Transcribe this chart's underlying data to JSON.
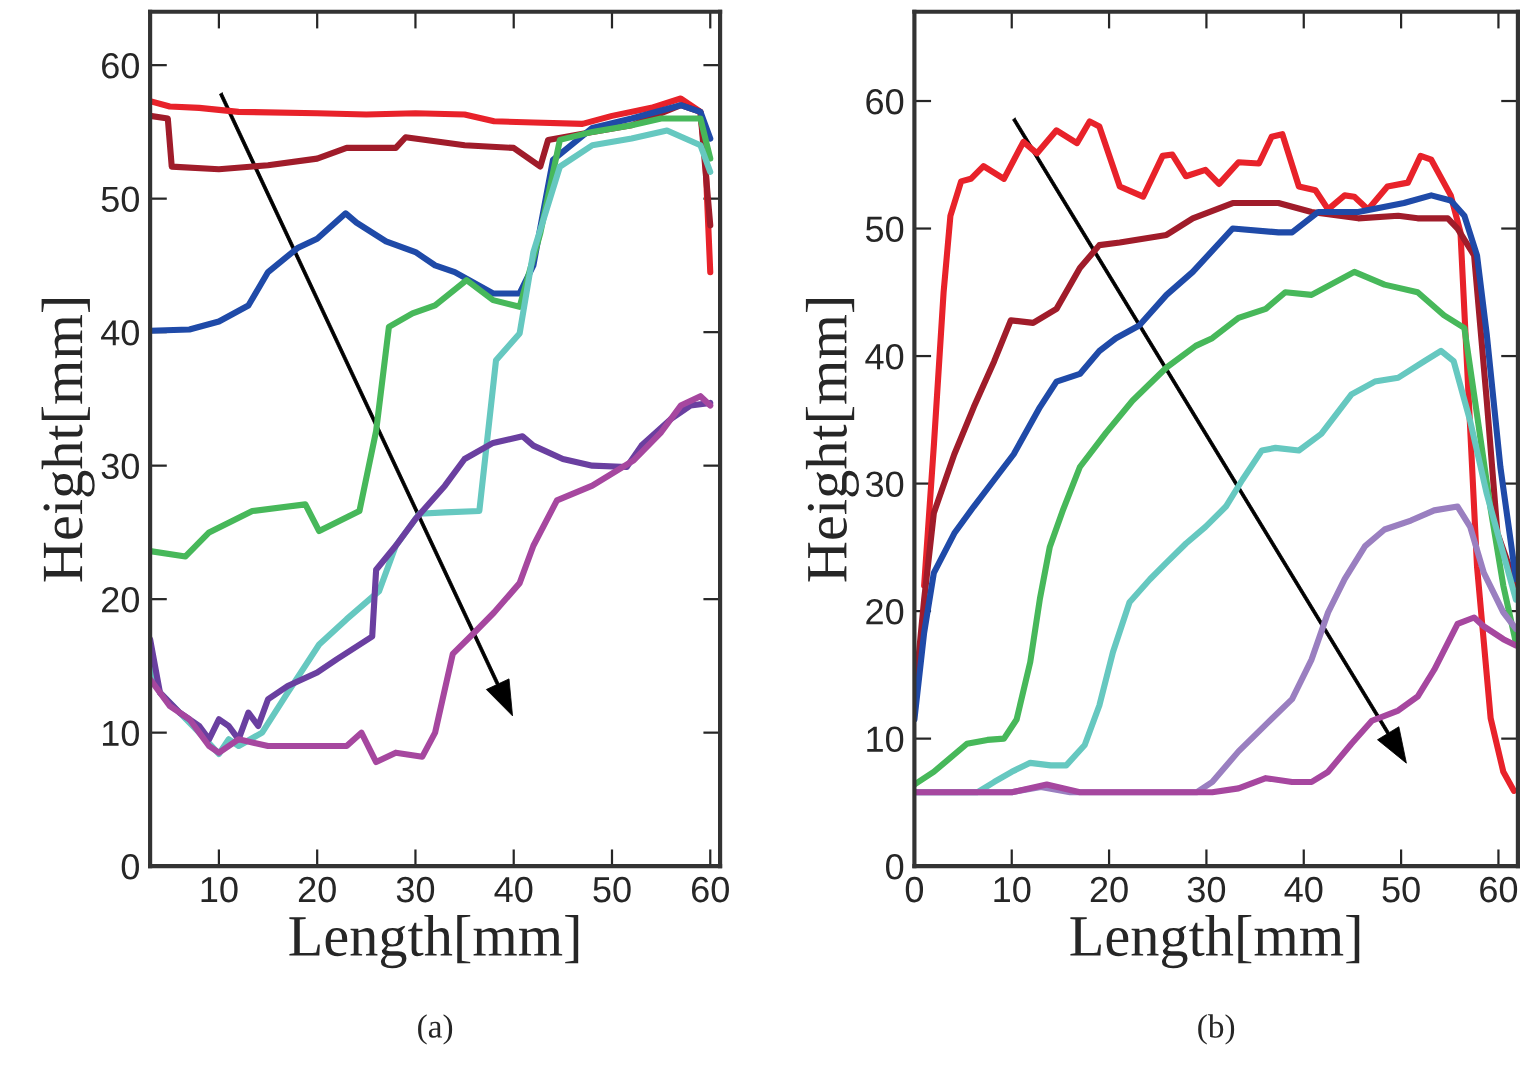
{
  "chart_data": [
    {
      "type": "line",
      "title": "(a)",
      "xlabel": "Length[mm]",
      "ylabel": "Height[mm]",
      "xlim": [
        3,
        61
      ],
      "ylim": [
        0,
        64
      ],
      "xticks": [
        10,
        20,
        30,
        40,
        50,
        60
      ],
      "yticks": [
        0,
        10,
        20,
        30,
        40,
        50,
        60
      ],
      "grid": false,
      "legend": false,
      "marker": "none",
      "line_style": "solid",
      "series": [
        {
          "color": "#e8222a",
          "x": [
            3,
            5,
            8,
            12,
            20,
            25,
            30,
            35,
            38,
            42,
            47,
            50,
            54,
            57,
            59,
            59.5,
            60
          ],
          "values": [
            57.3,
            56.9,
            56.8,
            56.5,
            56.4,
            56.3,
            56.4,
            56.3,
            55.8,
            55.7,
            55.6,
            56.2,
            56.8,
            57.5,
            56.5,
            53,
            44.5
          ]
        },
        {
          "color": "#a01c2a",
          "x": [
            3,
            4.8,
            5.2,
            10,
            15,
            20,
            23,
            28,
            29,
            35,
            40,
            42.7,
            43.5,
            48,
            52,
            57,
            59,
            60
          ],
          "values": [
            56.2,
            56,
            52.4,
            52.2,
            52.5,
            53,
            53.8,
            53.8,
            54.6,
            54,
            53.8,
            52.4,
            54.4,
            55,
            55.5,
            57,
            56.5,
            48
          ]
        },
        {
          "color": "#1f4aa8",
          "x": [
            3,
            7,
            10,
            13,
            15,
            18,
            20,
            22.9,
            24,
            27,
            30,
            32,
            34,
            37.9,
            40.6,
            42,
            43,
            44,
            48,
            52,
            57,
            59,
            60
          ],
          "values": [
            40.1,
            40.2,
            40.8,
            42,
            44.5,
            46.3,
            47,
            48.9,
            48.2,
            46.8,
            46,
            45,
            44.5,
            42.9,
            42.9,
            45,
            49,
            52.9,
            55.3,
            56,
            57,
            56.5,
            54.5
          ]
        },
        {
          "color": "#47b85a",
          "x": [
            3,
            6.6,
            9,
            13.4,
            18.8,
            20.2,
            24.3,
            26,
            27.3,
            29.7,
            32,
            35.2,
            37.9,
            40.6,
            42.7,
            44.7,
            48,
            52,
            55,
            59,
            60
          ],
          "values": [
            23.6,
            23.2,
            25,
            26.6,
            27.1,
            25.1,
            26.6,
            32.6,
            40.4,
            41.4,
            42,
            43.9,
            42.4,
            41.9,
            47.4,
            54.4,
            55,
            55.5,
            56,
            56,
            53
          ]
        },
        {
          "color": "#66c8c0",
          "x": [
            3,
            4,
            6,
            8,
            10,
            11,
            12,
            14.4,
            17,
            20.2,
            23,
            26.3,
            28,
            30.4,
            33,
            36.5,
            38.2,
            40.6,
            42,
            44.7,
            48,
            52,
            55.6,
            59,
            60
          ],
          "values": [
            15,
            13,
            11.5,
            10,
            8.4,
            9.5,
            9,
            10,
            13,
            16.6,
            18.5,
            20.6,
            24,
            26.4,
            26.5,
            26.6,
            37.9,
            39.9,
            46,
            52.4,
            54,
            54.5,
            55.1,
            54,
            52
          ]
        },
        {
          "color": "#6a3fa0",
          "x": [
            3,
            4,
            6,
            8,
            9,
            10,
            11,
            12,
            13,
            14,
            15,
            17,
            20,
            22,
            25.6,
            26,
            28,
            30,
            33,
            35,
            37.9,
            40.9,
            42,
            45,
            48,
            51.5,
            53,
            56,
            58,
            60
          ],
          "values": [
            17,
            13,
            11.5,
            10.5,
            9.5,
            11,
            10.5,
            9.5,
            11.5,
            10.5,
            12.5,
            13.5,
            14.5,
            15.5,
            17.2,
            22.2,
            24,
            26,
            28.5,
            30.5,
            31.7,
            32.2,
            31.5,
            30.5,
            30,
            29.9,
            31.5,
            33.5,
            34.5,
            34.7
          ]
        },
        {
          "color": "#a6479f",
          "x": [
            3,
            5,
            7,
            8,
            9,
            10,
            12,
            15,
            20,
            23,
            24.5,
            26,
            28,
            30.7,
            32,
            33.8,
            36,
            38,
            40.6,
            42,
            44.4,
            48,
            52.2,
            55,
            57,
            59,
            60
          ],
          "values": [
            14,
            12,
            11,
            10,
            9,
            8.5,
            9.5,
            9,
            9,
            9,
            10,
            7.8,
            8.5,
            8.2,
            10,
            15.9,
            17.5,
            19,
            21.2,
            24,
            27.4,
            28.5,
            30.4,
            32.5,
            34.5,
            35.2,
            34.5
          ]
        }
      ]
    },
    {
      "type": "line",
      "title": "(b)",
      "xlabel": "Length[mm]",
      "ylabel": "Height[mm]",
      "xlim": [
        0,
        62
      ],
      "ylim": [
        0,
        67
      ],
      "xticks": [
        0,
        10,
        20,
        30,
        40,
        50,
        60
      ],
      "yticks": [
        0,
        10,
        20,
        30,
        40,
        50,
        60
      ],
      "grid": false,
      "legend": false,
      "marker": "none",
      "line_style": "solid",
      "series": [
        {
          "color": "#e8222a",
          "x": [
            1,
            2,
            3,
            3.7,
            4.8,
            5.8,
            7.1,
            9.2,
            11.2,
            12.6,
            14.6,
            16.7,
            18,
            19,
            21.1,
            23.5,
            25.5,
            26.5,
            27.9,
            29.9,
            31.3,
            33.3,
            35.4,
            36.7,
            37.8,
            39.5,
            41.2,
            42.5,
            44.2,
            45.2,
            46.6,
            48.6,
            50.7,
            52,
            53.1,
            55.1,
            56.1,
            57.8,
            59.2,
            60.5,
            61.6
          ],
          "values": [
            22,
            33,
            45,
            51,
            53.7,
            53.9,
            54.9,
            53.9,
            56.8,
            55.9,
            57.7,
            56.7,
            58.4,
            58,
            53.3,
            52.5,
            55.7,
            55.8,
            54.1,
            54.6,
            53.5,
            55.2,
            55.1,
            57.2,
            57.4,
            53.3,
            53,
            51.5,
            52.6,
            52.5,
            51.5,
            53.3,
            53.6,
            55.7,
            55.4,
            52.6,
            49.7,
            23.5,
            11.6,
            7.4,
            5.9
          ]
        },
        {
          "color": "#a01c2a",
          "x": [
            0,
            1,
            2,
            4.1,
            6.1,
            8.2,
            9.9,
            12.2,
            14.6,
            17,
            19,
            21.1,
            25.9,
            28.6,
            32.7,
            37.4,
            40.8,
            45.6,
            49.7,
            51.7,
            54.8,
            55.8,
            57.5,
            58.8,
            59.9,
            61.8
          ],
          "values": [
            13,
            20.9,
            27.7,
            32.3,
            36,
            39.6,
            42.8,
            42.6,
            43.7,
            46.9,
            48.7,
            48.9,
            49.5,
            50.8,
            52,
            52,
            51.3,
            50.8,
            51,
            50.8,
            50.8,
            50,
            47.9,
            36.5,
            26.1,
            22
          ]
        },
        {
          "color": "#1f4aa8",
          "x": [
            0,
            1,
            2,
            4.1,
            6.1,
            8.2,
            10.2,
            12.9,
            14.6,
            17,
            19,
            20.7,
            23.1,
            25.9,
            28.6,
            32.7,
            37.4,
            38.8,
            41.5,
            45.6,
            50.3,
            53.1,
            55.1,
            56.5,
            57.8,
            58.8,
            60.2,
            61.8
          ],
          "values": [
            11.5,
            18.3,
            23,
            26.1,
            28.2,
            30.3,
            32.3,
            36,
            38,
            38.6,
            40.4,
            41.4,
            42.4,
            44.8,
            46.6,
            50,
            49.7,
            49.7,
            51.3,
            51.3,
            52,
            52.6,
            52.2,
            51,
            47.9,
            41.7,
            31.3,
            22.5
          ]
        },
        {
          "color": "#47b85a",
          "x": [
            0,
            2,
            5.4,
            7.5,
            9.2,
            10.5,
            11.9,
            12.9,
            13.9,
            15.3,
            17,
            19.7,
            22.4,
            25.9,
            28.9,
            30.6,
            33.3,
            36.1,
            38.1,
            40.8,
            45.2,
            48.3,
            51.7,
            54.4,
            56.5,
            57.8,
            59.2,
            60.5,
            61.8
          ],
          "values": [
            6.4,
            7.4,
            9.6,
            9.9,
            10,
            11.5,
            16,
            21,
            25,
            28,
            31.3,
            34,
            36.5,
            39.1,
            40.8,
            41.4,
            43,
            43.7,
            45,
            44.8,
            46.6,
            45.6,
            45,
            43.2,
            42.2,
            35.4,
            28,
            22,
            17.5
          ]
        },
        {
          "color": "#66c8c0",
          "x": [
            0,
            3,
            6.5,
            8.2,
            10,
            11.9,
            14,
            15.6,
            17.5,
            19,
            20.4,
            22.1,
            24.2,
            25.9,
            27.9,
            29.9,
            32,
            33.7,
            35.7,
            37.1,
            39.5,
            41.8,
            44.9,
            47.3,
            49.7,
            52.4,
            54.1,
            55.4,
            57.1,
            58.8,
            60.5,
            61.8
          ],
          "values": [
            5.8,
            null,
            5.8,
            6.6,
            7.4,
            8.1,
            7.9,
            7.9,
            9.5,
            12.6,
            16.8,
            20.7,
            22.5,
            23.8,
            25.3,
            26.6,
            28.2,
            30.3,
            32.6,
            32.8,
            32.6,
            33.9,
            37,
            38,
            38.3,
            39.6,
            40.4,
            39.6,
            34.9,
            29.2,
            24.5,
            20.9
          ]
        },
        {
          "color": "#9a7fc0",
          "x": [
            0,
            10,
            13,
            16,
            29,
            30.6,
            33.3,
            36.1,
            38.8,
            40.8,
            42.5,
            44.2,
            46.3,
            48.3,
            51,
            53.4,
            55.8,
            57.1,
            58.5,
            60.5,
            61.8
          ],
          "values": [
            5.8,
            5.8,
            6.2,
            5.8,
            5.8,
            6.6,
            9,
            11.1,
            13.1,
            16.2,
            19.9,
            22.5,
            25.1,
            26.4,
            27.1,
            27.9,
            28.2,
            26.6,
            23,
            19.9,
            18.6
          ]
        },
        {
          "color": "#a6479f",
          "x": [
            0,
            10,
            13.6,
            17,
            30.6,
            33.3,
            36.1,
            38.8,
            40.8,
            42.5,
            44.9,
            47,
            49.7,
            51.7,
            53.4,
            55.8,
            57.5,
            58.5,
            60.5,
            61.8
          ],
          "values": [
            5.8,
            5.8,
            6.4,
            5.8,
            5.8,
            6.1,
            6.9,
            6.6,
            6.6,
            7.4,
            9.6,
            11.4,
            12.2,
            13.3,
            15.4,
            19,
            19.5,
            18.8,
            17.8,
            17.3
          ]
        }
      ]
    }
  ]
}
